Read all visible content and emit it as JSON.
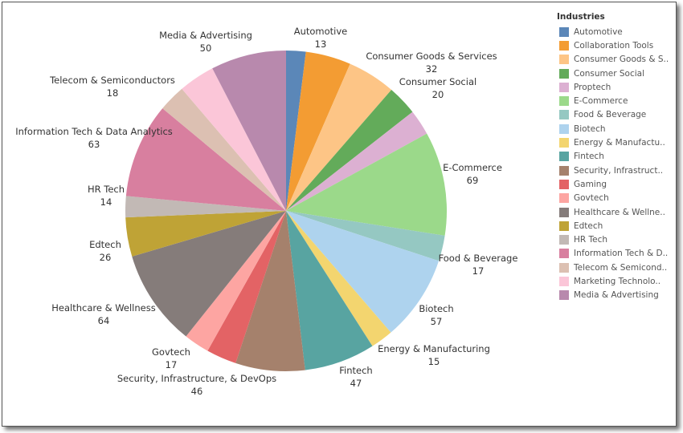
{
  "chart_data": {
    "type": "pie",
    "title": "",
    "legend": {
      "title": "Industries",
      "placement": "right"
    },
    "slices": [
      {
        "name": "Automotive",
        "legend_label": "Automotive",
        "value": 13,
        "color": "#5b87b8",
        "labeled": true
      },
      {
        "name": "Collaboration Tools",
        "legend_label": "Collaboration Tools",
        "value": 30,
        "color": "#f39c33",
        "labeled": false
      },
      {
        "name": "Consumer Goods & Services",
        "legend_label": "Consumer Goods & S..",
        "value": 32,
        "color": "#fdc586",
        "labeled": true
      },
      {
        "name": "Consumer Social",
        "legend_label": "Consumer Social",
        "value": 20,
        "color": "#63ab5a",
        "labeled": true
      },
      {
        "name": "Proptech",
        "legend_label": "Proptech",
        "value": 17,
        "color": "#dcb0d2",
        "labeled": false
      },
      {
        "name": "E-Commerce",
        "legend_label": "E-Commerce",
        "value": 69,
        "color": "#9bd98a",
        "labeled": true
      },
      {
        "name": "Food & Beverage",
        "legend_label": "Food & Beverage",
        "value": 17,
        "color": "#95c8c2",
        "labeled": true
      },
      {
        "name": "Biotech",
        "legend_label": "Biotech",
        "value": 57,
        "color": "#aed3ee",
        "labeled": true
      },
      {
        "name": "Energy & Manufacturing",
        "legend_label": "Energy & Manufactu..",
        "value": 15,
        "color": "#f3d56f",
        "labeled": true
      },
      {
        "name": "Fintech",
        "legend_label": "Fintech",
        "value": 47,
        "color": "#58a4a1",
        "labeled": true
      },
      {
        "name": "Security, Infrastructure, & DevOps",
        "legend_label": "Security, Infrastruct..",
        "value": 46,
        "color": "#a5816c",
        "labeled": true
      },
      {
        "name": "Gaming",
        "legend_label": "Gaming",
        "value": 20,
        "color": "#e36365",
        "labeled": false
      },
      {
        "name": "Govtech",
        "legend_label": "Govtech",
        "value": 17,
        "color": "#fda5a2",
        "labeled": true
      },
      {
        "name": "Healthcare & Wellness",
        "legend_label": "Healthcare & Wellne..",
        "value": 64,
        "color": "#857c7a",
        "labeled": true
      },
      {
        "name": "Edtech",
        "legend_label": "Edtech",
        "value": 26,
        "color": "#bfa336",
        "labeled": true
      },
      {
        "name": "HR Tech",
        "legend_label": "HR Tech",
        "value": 14,
        "color": "#c2b9b5",
        "labeled": true
      },
      {
        "name": "Information Tech & Data Analytics",
        "legend_label": "Information Tech & D..",
        "value": 63,
        "color": "#d87f9f",
        "labeled": true
      },
      {
        "name": "Telecom & Semiconductors",
        "legend_label": "Telecom & Semicond..",
        "value": 18,
        "color": "#dcc0b2",
        "labeled": true
      },
      {
        "name": "Marketing Technology",
        "legend_label": "Marketing Technolo..",
        "value": 24,
        "color": "#fbc6d8",
        "labeled": false
      },
      {
        "name": "Media & Advertising",
        "legend_label": "Media & Advertising",
        "value": 50,
        "color": "#b889ad",
        "labeled": true
      }
    ]
  }
}
